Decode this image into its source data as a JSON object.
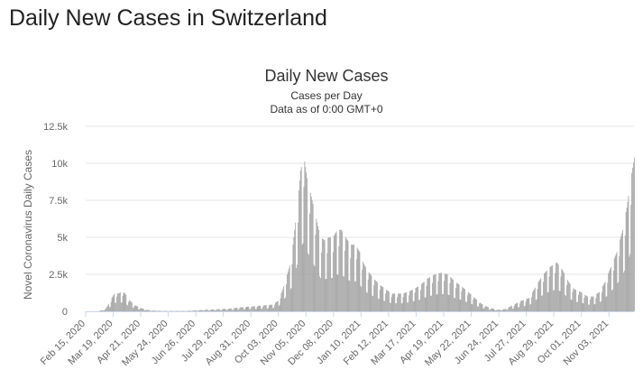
{
  "page": {
    "heading": "Daily New Cases in Switzerland"
  },
  "colors": {
    "bar": "#a0a0a0",
    "grid": "#e6e6e6",
    "axis": "#ccd6eb",
    "text": "#333333",
    "tick_text": "#666666"
  },
  "chart_data": {
    "type": "bar",
    "title": "Daily New Cases",
    "subtitle_lines": [
      "Cases per Day",
      "Data as of 0:00 GMT+0"
    ],
    "ylabel": "Novel Coronavirus Daily Cases",
    "xlabel": "",
    "ylim": [
      0,
      12500
    ],
    "y_ticks": [
      {
        "value": 0,
        "label": "0"
      },
      {
        "value": 2500,
        "label": "2.5k"
      },
      {
        "value": 5000,
        "label": "5k"
      },
      {
        "value": 7500,
        "label": "7.5k"
      },
      {
        "value": 10000,
        "label": "10k"
      },
      {
        "value": 12500,
        "label": "12.5k"
      }
    ],
    "x_range": [
      "2020-02-15",
      "2021-12-03"
    ],
    "x_ticks": [
      {
        "date": "2020-02-15",
        "label": "Feb 15, 2020"
      },
      {
        "date": "2020-03-19",
        "label": "Mar 19, 2020"
      },
      {
        "date": "2020-04-21",
        "label": "Apr 21, 2020"
      },
      {
        "date": "2020-05-24",
        "label": "May 24, 2020"
      },
      {
        "date": "2020-06-26",
        "label": "Jun 26, 2020"
      },
      {
        "date": "2020-07-29",
        "label": "Jul 29, 2020"
      },
      {
        "date": "2020-08-31",
        "label": "Aug 31, 2020"
      },
      {
        "date": "2020-10-03",
        "label": "Oct 03, 2020"
      },
      {
        "date": "2020-11-05",
        "label": "Nov 05, 2020"
      },
      {
        "date": "2020-12-08",
        "label": "Dec 08, 2020"
      },
      {
        "date": "2021-01-10",
        "label": "Jan 10, 2021"
      },
      {
        "date": "2021-02-12",
        "label": "Feb 12, 2021"
      },
      {
        "date": "2021-03-17",
        "label": "Mar 17, 2021"
      },
      {
        "date": "2021-04-19",
        "label": "Apr 19, 2021"
      },
      {
        "date": "2021-05-22",
        "label": "May 22, 2021"
      },
      {
        "date": "2021-06-24",
        "label": "Jun 24, 2021"
      },
      {
        "date": "2021-07-27",
        "label": "Jul 27, 2021"
      },
      {
        "date": "2021-08-29",
        "label": "Aug 29, 2021"
      },
      {
        "date": "2021-10-01",
        "label": "Oct 01, 2021"
      },
      {
        "date": "2021-11-03",
        "label": "Nov 03, 2021"
      }
    ],
    "series": [
      {
        "values": [
          {
            "date": "2020-02-15",
            "value": 0
          },
          {
            "date": "2020-02-25",
            "value": 1
          },
          {
            "date": "2020-03-01",
            "value": 20
          },
          {
            "date": "2020-03-06",
            "value": 80
          },
          {
            "date": "2020-03-10",
            "value": 200
          },
          {
            "date": "2020-03-14",
            "value": 600
          },
          {
            "date": "2020-03-18",
            "value": 1000
          },
          {
            "date": "2020-03-21",
            "value": 1300
          },
          {
            "date": "2020-03-25",
            "value": 1200
          },
          {
            "date": "2020-03-29",
            "value": 1350
          },
          {
            "date": "2020-04-02",
            "value": 1200
          },
          {
            "date": "2020-04-06",
            "value": 800
          },
          {
            "date": "2020-04-10",
            "value": 600
          },
          {
            "date": "2020-04-14",
            "value": 400
          },
          {
            "date": "2020-04-18",
            "value": 300
          },
          {
            "date": "2020-04-22",
            "value": 200
          },
          {
            "date": "2020-04-28",
            "value": 100
          },
          {
            "date": "2020-05-05",
            "value": 50
          },
          {
            "date": "2020-05-15",
            "value": 30
          },
          {
            "date": "2020-05-25",
            "value": 20
          },
          {
            "date": "2020-06-05",
            "value": 25
          },
          {
            "date": "2020-06-15",
            "value": 30
          },
          {
            "date": "2020-06-25",
            "value": 60
          },
          {
            "date": "2020-07-05",
            "value": 100
          },
          {
            "date": "2020-07-15",
            "value": 120
          },
          {
            "date": "2020-07-25",
            "value": 150
          },
          {
            "date": "2020-08-05",
            "value": 180
          },
          {
            "date": "2020-08-15",
            "value": 250
          },
          {
            "date": "2020-08-25",
            "value": 300
          },
          {
            "date": "2020-09-05",
            "value": 350
          },
          {
            "date": "2020-09-15",
            "value": 400
          },
          {
            "date": "2020-09-25",
            "value": 450
          },
          {
            "date": "2020-10-02",
            "value": 700
          },
          {
            "date": "2020-10-08",
            "value": 1500
          },
          {
            "date": "2020-10-13",
            "value": 2500
          },
          {
            "date": "2020-10-18",
            "value": 3500
          },
          {
            "date": "2020-10-22",
            "value": 5500
          },
          {
            "date": "2020-10-26",
            "value": 7500
          },
          {
            "date": "2020-10-29",
            "value": 9500
          },
          {
            "date": "2020-11-02",
            "value": 10500
          },
          {
            "date": "2020-11-06",
            "value": 9000
          },
          {
            "date": "2020-11-10",
            "value": 8000
          },
          {
            "date": "2020-11-14",
            "value": 7000
          },
          {
            "date": "2020-11-18",
            "value": 6000
          },
          {
            "date": "2020-11-22",
            "value": 5000
          },
          {
            "date": "2020-11-27",
            "value": 4800
          },
          {
            "date": "2020-12-02",
            "value": 5000
          },
          {
            "date": "2020-12-07",
            "value": 5000
          },
          {
            "date": "2020-12-12",
            "value": 5500
          },
          {
            "date": "2020-12-17",
            "value": 5500
          },
          {
            "date": "2020-12-22",
            "value": 5000
          },
          {
            "date": "2020-12-28",
            "value": 4500
          },
          {
            "date": "2021-01-03",
            "value": 4500
          },
          {
            "date": "2021-01-08",
            "value": 4000
          },
          {
            "date": "2021-01-13",
            "value": 3200
          },
          {
            "date": "2021-01-18",
            "value": 2700
          },
          {
            "date": "2021-01-25",
            "value": 2200
          },
          {
            "date": "2021-02-01",
            "value": 1800
          },
          {
            "date": "2021-02-08",
            "value": 1500
          },
          {
            "date": "2021-02-15",
            "value": 1200
          },
          {
            "date": "2021-02-22",
            "value": 1200
          },
          {
            "date": "2021-03-01",
            "value": 1200
          },
          {
            "date": "2021-03-10",
            "value": 1400
          },
          {
            "date": "2021-03-20",
            "value": 1700
          },
          {
            "date": "2021-03-30",
            "value": 2200
          },
          {
            "date": "2021-04-08",
            "value": 2500
          },
          {
            "date": "2021-04-16",
            "value": 2600
          },
          {
            "date": "2021-04-24",
            "value": 2500
          },
          {
            "date": "2021-05-02",
            "value": 2000
          },
          {
            "date": "2021-05-10",
            "value": 1700
          },
          {
            "date": "2021-05-18",
            "value": 1300
          },
          {
            "date": "2021-05-26",
            "value": 900
          },
          {
            "date": "2021-06-03",
            "value": 500
          },
          {
            "date": "2021-06-12",
            "value": 250
          },
          {
            "date": "2021-06-22",
            "value": 100
          },
          {
            "date": "2021-07-01",
            "value": 150
          },
          {
            "date": "2021-07-10",
            "value": 400
          },
          {
            "date": "2021-07-20",
            "value": 700
          },
          {
            "date": "2021-07-30",
            "value": 900
          },
          {
            "date": "2021-08-08",
            "value": 1800
          },
          {
            "date": "2021-08-16",
            "value": 2500
          },
          {
            "date": "2021-08-24",
            "value": 3000
          },
          {
            "date": "2021-09-01",
            "value": 3300
          },
          {
            "date": "2021-09-08",
            "value": 2800
          },
          {
            "date": "2021-09-15",
            "value": 2000
          },
          {
            "date": "2021-09-22",
            "value": 1500
          },
          {
            "date": "2021-09-30",
            "value": 1300
          },
          {
            "date": "2021-10-08",
            "value": 1000
          },
          {
            "date": "2021-10-15",
            "value": 1000
          },
          {
            "date": "2021-10-22",
            "value": 1300
          },
          {
            "date": "2021-10-29",
            "value": 2000
          },
          {
            "date": "2021-11-05",
            "value": 3000
          },
          {
            "date": "2021-11-12",
            "value": 4000
          },
          {
            "date": "2021-11-19",
            "value": 5500
          },
          {
            "date": "2021-11-24",
            "value": 7000
          },
          {
            "date": "2021-11-29",
            "value": 9000
          },
          {
            "date": "2021-12-03",
            "value": 10400
          }
        ]
      }
    ],
    "grid": true,
    "legend": "none"
  }
}
